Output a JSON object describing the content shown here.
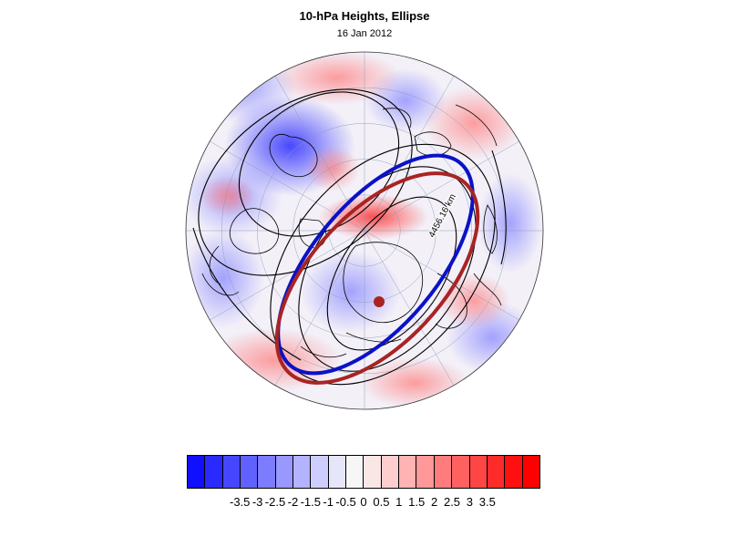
{
  "figure": {
    "title": "10-hPa Heights, Ellipse",
    "subtitle": "16 Jan 2012"
  },
  "map": {
    "projection": "polar stereographic (north pole)",
    "contour_label": "4456.16 km",
    "colors": {
      "ellipse_blue": "#0a12c8",
      "ellipse_red": "#a82424",
      "center_marker": "#a82424",
      "contour": "#000000"
    }
  },
  "colorbar": {
    "colors": [
      "#1010ff",
      "#2a2aff",
      "#4646ff",
      "#6161ff",
      "#7c7cff",
      "#9898ff",
      "#b3b3ff",
      "#cecefe",
      "#e6e6fb",
      "#f6f6f6",
      "#fbe6e6",
      "#fecece",
      "#ffb3b3",
      "#ff9898",
      "#ff7c7c",
      "#ff6161",
      "#ff4646",
      "#ff2a2a",
      "#ff1010",
      "#ff0000"
    ],
    "labels": [
      "-3.5",
      "-3",
      "-2.5",
      "-2",
      "-1.5",
      "-1",
      "-0.5",
      "0",
      "0.5",
      "1",
      "1.5",
      "2",
      "2.5",
      "3",
      "3.5"
    ]
  }
}
